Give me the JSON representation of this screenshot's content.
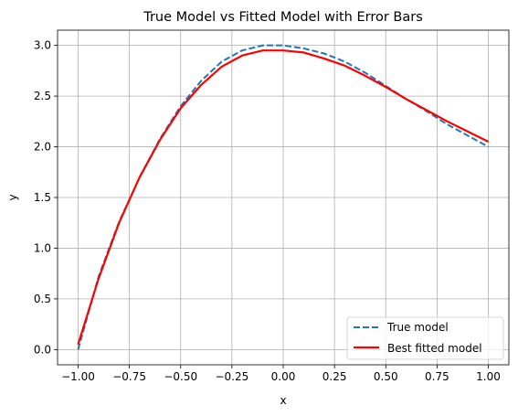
{
  "chart_data": {
    "type": "line",
    "title": "True Model vs Fitted Model with Error Bars",
    "xlabel": "x",
    "ylabel": "y",
    "xlim": [
      -1.1,
      1.1
    ],
    "ylim": [
      -0.15,
      3.15
    ],
    "grid": true,
    "legend_position": "lower right",
    "xticks": [
      {
        "value": -1.0,
        "label": "−1.00"
      },
      {
        "value": -0.75,
        "label": "−0.75"
      },
      {
        "value": -0.5,
        "label": "−0.50"
      },
      {
        "value": -0.25,
        "label": "−0.25"
      },
      {
        "value": 0.0,
        "label": "0.00"
      },
      {
        "value": 0.25,
        "label": "0.25"
      },
      {
        "value": 0.5,
        "label": "0.50"
      },
      {
        "value": 0.75,
        "label": "0.75"
      },
      {
        "value": 1.0,
        "label": "1.00"
      }
    ],
    "yticks": [
      {
        "value": 0.0,
        "label": "0.0"
      },
      {
        "value": 0.5,
        "label": "0.5"
      },
      {
        "value": 1.0,
        "label": "1.0"
      },
      {
        "value": 1.5,
        "label": "1.5"
      },
      {
        "value": 2.0,
        "label": "2.0"
      },
      {
        "value": 2.5,
        "label": "2.5"
      },
      {
        "value": 3.0,
        "label": "3.0"
      }
    ],
    "x": [
      -1.0,
      -0.9,
      -0.8,
      -0.7,
      -0.6,
      -0.5,
      -0.4,
      -0.3,
      -0.2,
      -0.1,
      0.0,
      0.1,
      0.2,
      0.3,
      0.4,
      0.5,
      0.6,
      0.7,
      0.8,
      0.9,
      1.0
    ],
    "series": [
      {
        "name": "True model",
        "color": "#1f77b4",
        "dashed": true,
        "values": [
          0.0,
          0.72,
          1.26,
          1.7,
          2.08,
          2.4,
          2.65,
          2.84,
          2.95,
          3.0,
          3.0,
          2.97,
          2.92,
          2.84,
          2.73,
          2.6,
          2.47,
          2.35,
          2.22,
          2.11,
          2.0
        ]
      },
      {
        "name": "Best fitted model",
        "color": "#ff0000",
        "dashed": false,
        "values": [
          0.05,
          0.7,
          1.25,
          1.7,
          2.07,
          2.38,
          2.61,
          2.79,
          2.9,
          2.95,
          2.95,
          2.93,
          2.87,
          2.8,
          2.7,
          2.59,
          2.47,
          2.36,
          2.25,
          2.15,
          2.05
        ]
      }
    ]
  }
}
